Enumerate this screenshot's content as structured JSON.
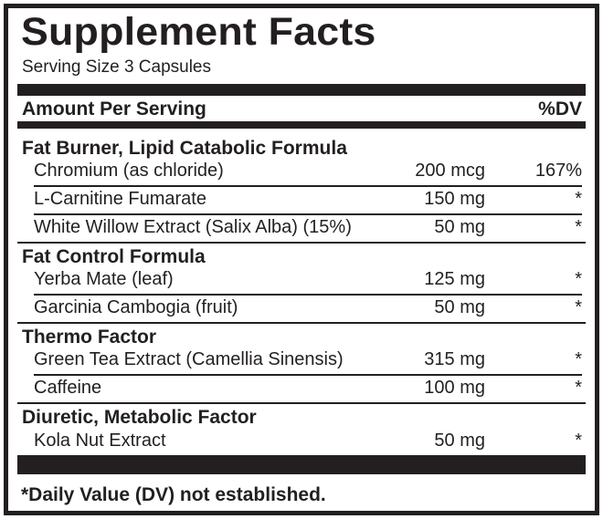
{
  "panel": {
    "title": "Supplement Facts",
    "serving_size": "Serving Size 3 Capsules",
    "header": {
      "amount_label": "Amount Per Serving",
      "dv_label": "%DV"
    },
    "sections": [
      {
        "name": "Fat Burner, Lipid Catabolic Formula",
        "items": [
          {
            "name": "Chromium (as chloride)",
            "amount": "200 mcg",
            "dv": "167%"
          },
          {
            "name": "L-Carnitine Fumarate",
            "amount": "150 mg",
            "dv": "*"
          },
          {
            "name": "White Willow Extract (Salix Alba) (15%)",
            "amount": "50 mg",
            "dv": "*"
          }
        ]
      },
      {
        "name": "Fat Control Formula",
        "items": [
          {
            "name": "Yerba Mate (leaf)",
            "amount": "125 mg",
            "dv": "*"
          },
          {
            "name": "Garcinia Cambogia (fruit)",
            "amount": "50 mg",
            "dv": "*"
          }
        ]
      },
      {
        "name": "Thermo Factor",
        "items": [
          {
            "name": "Green Tea Extract (Camellia Sinensis)",
            "amount": "315 mg",
            "dv": "*"
          },
          {
            "name": "Caffeine",
            "amount": "100 mg",
            "dv": "*"
          }
        ]
      },
      {
        "name": "Diuretic, Metabolic Factor",
        "items": [
          {
            "name": "Kola Nut Extract",
            "amount": "50 mg",
            "dv": "*"
          }
        ]
      }
    ],
    "footnote": "*Daily Value (DV) not established."
  }
}
